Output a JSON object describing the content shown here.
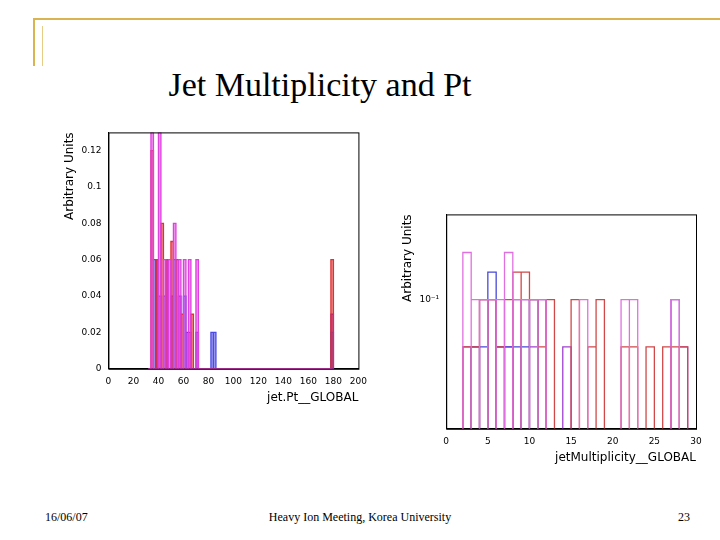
{
  "slide": {
    "title": "Jet Multiplicity and Pt",
    "date": "16/06/07",
    "footer": "Heavy Ion Meeting, Korea University",
    "page": 23
  },
  "chart_data": [
    {
      "type": "histogram",
      "x_label": "jet.Pt__GLOBAL",
      "y_label": "Arbitrary Units",
      "bins": [
        32,
        34,
        36,
        38,
        40,
        42,
        44,
        46,
        48,
        50,
        52,
        54,
        56,
        58,
        60,
        62,
        64,
        66,
        68,
        70,
        72,
        74,
        76,
        78,
        80,
        82,
        84,
        86,
        88,
        90,
        92,
        178,
        180
      ],
      "series": [
        {
          "color": "#e040e0",
          "values": [
            0,
            0.13,
            0,
            0,
            0.13,
            0,
            0.06,
            0,
            0.06,
            0,
            0.08,
            0,
            0.06,
            0,
            0.06,
            0,
            0.06,
            0,
            0,
            0.06,
            0,
            0,
            0,
            0,
            0,
            0,
            0,
            0,
            0,
            0,
            0,
            0
          ]
        },
        {
          "color": "#e03030",
          "values": [
            0,
            0.12,
            0,
            0.06,
            0,
            0.08,
            0,
            0.06,
            0,
            0.07,
            0,
            0.06,
            0,
            0.03,
            0,
            0,
            0,
            0.03,
            0,
            0,
            0,
            0,
            0,
            0,
            0,
            0,
            0,
            0,
            0,
            0,
            0,
            0.06
          ]
        },
        {
          "color": "#4a4ae8",
          "values": [
            0,
            0,
            0.06,
            0,
            0.04,
            0,
            0,
            0.06,
            0,
            0,
            0.06,
            0,
            0,
            0,
            0.04,
            0,
            0,
            0,
            0,
            0.02,
            0,
            0,
            0,
            0,
            0,
            0.02,
            0.02,
            0,
            0,
            0,
            0,
            0.02
          ]
        },
        {
          "color": "#8020d0",
          "values": [
            0,
            0,
            0,
            0.06,
            0,
            0,
            0.04,
            0,
            0,
            0.04,
            0,
            0,
            0.04,
            0,
            0,
            0.02,
            0.02,
            0,
            0,
            0,
            0,
            0,
            0,
            0,
            0,
            0,
            0,
            0,
            0,
            0,
            0,
            0.03
          ]
        }
      ],
      "xlim": [
        0,
        200
      ],
      "xticks": [
        0,
        20,
        40,
        60,
        80,
        100,
        120,
        140,
        160,
        180,
        200
      ],
      "ylim": [
        0,
        0.13
      ],
      "yticks": [
        0,
        0.02,
        0.04,
        0.06,
        0.08,
        0.1,
        0.12
      ],
      "grid": false
    },
    {
      "type": "histogram",
      "x_label": "jetMultiplicity__GLOBAL",
      "y_label": "Arbitrary Units",
      "log": "y",
      "bins": [
        0,
        1,
        2,
        3,
        4,
        5,
        6,
        7,
        8,
        9,
        10,
        11,
        12,
        13,
        14,
        15,
        16,
        17,
        18,
        19,
        20,
        21,
        22,
        23,
        24,
        25,
        26,
        27,
        28,
        29,
        30
      ],
      "series": [
        {
          "color": "#e070e0",
          "values": [
            null,
            null,
            0.2,
            0.1,
            0.1,
            0.1,
            0.1,
            0.2,
            0.1,
            0.1,
            0.1,
            0.1,
            null,
            null,
            null,
            null,
            0.1,
            null,
            null,
            null,
            null,
            0.1,
            0.1,
            null,
            null,
            null,
            null,
            0.1,
            null,
            null
          ]
        },
        {
          "color": "#d04848",
          "values": [
            null,
            null,
            0.05,
            0.05,
            0.1,
            0.1,
            0.05,
            0.1,
            0.15,
            0.15,
            0.1,
            0.05,
            0.1,
            null,
            null,
            0.1,
            null,
            0.05,
            0.1,
            null,
            null,
            0.05,
            0.05,
            null,
            0.05,
            null,
            0.05,
            0.05,
            0.05,
            null
          ]
        },
        {
          "color": "#4848d8",
          "values": [
            null,
            null,
            null,
            0.05,
            0.05,
            0.15,
            0.05,
            0.05,
            0.05,
            0.05,
            0.1,
            null,
            null,
            null,
            null,
            null,
            null,
            null,
            null,
            null,
            null,
            null,
            null,
            null,
            null,
            null,
            null,
            null,
            null,
            null
          ]
        },
        {
          "color": "#a040d0",
          "values": [
            null,
            null,
            0.05,
            0.05,
            0.1,
            0.1,
            0.05,
            0.05,
            0.1,
            0.1,
            0.05,
            0.1,
            null,
            null,
            0.05,
            null,
            null,
            null,
            null,
            null,
            null,
            null,
            null,
            null,
            null,
            null,
            null,
            0.1,
            0.05,
            null
          ]
        }
      ],
      "xlim": [
        0,
        30
      ],
      "xticks": [
        0,
        5,
        10,
        15,
        20,
        25,
        30
      ],
      "ylim": [
        0.015,
        0.35
      ],
      "yticks": [
        {
          "value": 0.1,
          "label": "10⁻¹"
        }
      ],
      "grid": false
    }
  ]
}
